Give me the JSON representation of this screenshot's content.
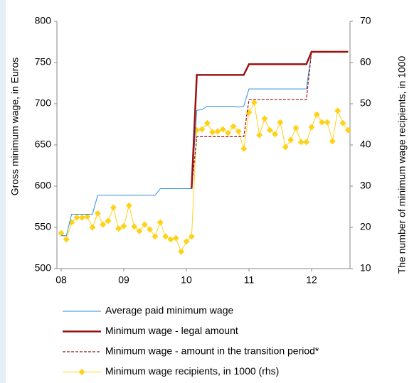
{
  "chart_data": {
    "type": "line",
    "y_label": "Gross minimum wage, in Euros",
    "y2_label": "The number of minimum wage recipients, in 1000",
    "categories": [
      "08",
      null,
      null,
      null,
      null,
      null,
      null,
      null,
      null,
      null,
      null,
      null,
      "09",
      null,
      null,
      null,
      null,
      null,
      null,
      null,
      null,
      null,
      null,
      null,
      "10",
      null,
      null,
      null,
      null,
      null,
      null,
      null,
      null,
      null,
      null,
      null,
      "11",
      null,
      null,
      null,
      null,
      null,
      null,
      null,
      null,
      null,
      null,
      null,
      "12",
      null,
      null,
      null,
      null,
      null,
      null,
      null
    ],
    "ylim": [
      500,
      800
    ],
    "yticks": [
      500,
      550,
      600,
      650,
      700,
      750,
      800
    ],
    "y2lim": [
      10,
      70
    ],
    "y2ticks": [
      10,
      20,
      30,
      40,
      50,
      60,
      70
    ],
    "series": [
      {
        "name": "Average paid minimum wage",
        "color": "#2b8fe0",
        "line_style": "solid",
        "width": 1,
        "values": [
          540,
          540,
          566,
          566,
          566,
          566,
          566,
          589,
          589,
          589,
          589,
          589,
          589,
          589,
          589,
          589,
          589,
          589,
          589,
          597,
          597,
          597,
          597,
          597,
          597,
          597,
          692,
          693,
          697,
          697,
          697,
          697,
          697,
          697,
          696,
          697,
          718,
          718,
          718,
          718,
          718,
          718,
          718,
          718,
          718,
          718,
          718,
          718,
          763,
          763,
          763,
          763,
          763,
          763,
          763,
          763
        ]
      },
      {
        "name": "Minimum wage - legal amount",
        "color": "#9b1111",
        "line_style": "solid",
        "width": 2.5,
        "values": [
          null,
          null,
          null,
          null,
          null,
          null,
          null,
          null,
          null,
          null,
          null,
          null,
          null,
          null,
          null,
          null,
          null,
          null,
          null,
          null,
          null,
          null,
          null,
          null,
          null,
          597,
          735,
          735,
          735,
          735,
          735,
          735,
          735,
          735,
          735,
          735,
          748,
          748,
          748,
          748,
          748,
          748,
          748,
          748,
          748,
          748,
          748,
          748,
          763,
          763,
          763,
          763,
          763,
          763,
          763,
          763
        ]
      },
      {
        "name": "Minimum wage - amount in the transition period*",
        "color": "#9b1111",
        "line_style": "dashed",
        "width": 1.2,
        "values": [
          null,
          null,
          null,
          null,
          null,
          null,
          null,
          null,
          null,
          null,
          null,
          null,
          null,
          null,
          null,
          null,
          null,
          null,
          null,
          null,
          null,
          null,
          null,
          null,
          null,
          597,
          660,
          660,
          660,
          660,
          660,
          660,
          660,
          660,
          660,
          660,
          705,
          705,
          705,
          705,
          705,
          705,
          705,
          705,
          705,
          705,
          705,
          705,
          763,
          763,
          763,
          763,
          763,
          763,
          763,
          763
        ]
      },
      {
        "name": "Minimum wage recipients, in 1000 (rhs)",
        "color": "#ffd21a",
        "line_style": "solid",
        "width": 1,
        "marker": "diamond",
        "axis": "y2",
        "values": [
          18.6,
          17.1,
          21.2,
          22.4,
          22.4,
          22.6,
          20.0,
          23.4,
          20.7,
          21.6,
          24.8,
          19.7,
          20.3,
          25.3,
          20.2,
          19.1,
          20.7,
          19.5,
          17.8,
          21.2,
          17.8,
          17.1,
          17.4,
          14.1,
          16.6,
          17.8,
          43.6,
          43.8,
          45.3,
          43.1,
          43.3,
          43.8,
          42.9,
          44.5,
          43.3,
          39.1,
          47.9,
          50.3,
          42.4,
          46.4,
          43.6,
          42.6,
          45.5,
          39.5,
          41.2,
          44.1,
          40.7,
          40.7,
          44.3,
          47.4,
          45.5,
          45.5,
          40.9,
          48.3,
          45.3,
          43.6
        ]
      }
    ]
  }
}
